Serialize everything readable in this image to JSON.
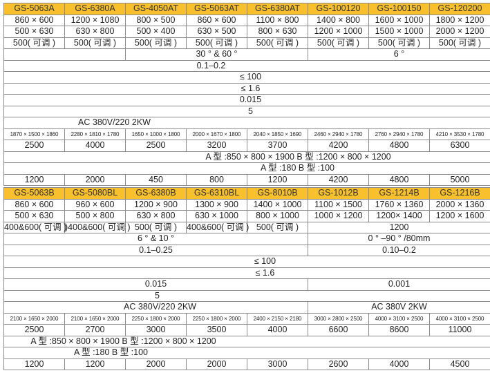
{
  "colors": {
    "header_bg": "#f8c02c",
    "border": "#8a8a8a"
  },
  "table_a": {
    "rows": [
      [
        "GS-5063A",
        "GS-6380A",
        "GS-4050AT",
        "GS-5063AT",
        "GS-6380AT",
        "GS-100120",
        "GS-100150",
        "GS-120200"
      ],
      [
        "860 × 600",
        "1200 × 1080",
        "800 × 500",
        "860 × 600",
        "1100 × 800",
        "1400 × 800",
        "1600 × 1000",
        "1800 × 1200"
      ],
      [
        "500 × 630",
        "630 × 800",
        "500 × 400",
        "630 × 500",
        "800 × 630",
        "1200 × 1000",
        "1500 × 1000",
        "2000 × 1200"
      ],
      [
        "500( 可调 )",
        "500( 可调 )",
        "500( 可调 )",
        "500( 可调 )",
        "500( 可调 )",
        "500( 可调 )",
        "500( 可调 )",
        "500( 可调 )"
      ],
      [
        "",
        "30 °  & 60 °",
        "6 °"
      ],
      [
        "0.1–0.2"
      ],
      [
        "≤ 100"
      ],
      [
        "≤ 1.6"
      ],
      [
        "0.015"
      ],
      [
        "5"
      ],
      [
        "AC 380V/220 2KW"
      ],
      [
        "1870 × 1500 × 1860",
        "2280 × 1810 × 1780",
        "1650 × 1000 × 1800",
        "2000 × 1670 × 1800",
        "2040 × 1850 × 1690",
        "2460 × 2940 × 1780",
        "2760 × 2940 × 1780",
        "4210 × 3530 × 1780"
      ],
      [
        "2500",
        "4000",
        "2500",
        "3200",
        "3700",
        "4200",
        "4800",
        "6300"
      ],
      [
        "A 型 :850 × 800 × 1900   B 型 :1200 × 800 × 1200"
      ],
      [
        "A 型 :180   B 型 :100"
      ],
      [
        "1200",
        "2000",
        "450",
        "800",
        "1200",
        "4200",
        "4800",
        "5000"
      ]
    ]
  },
  "table_b": {
    "rows": [
      [
        "GS-5063B",
        "GS-5080BL",
        "GS-6380B",
        "GS-6310BL",
        "GS-8010B",
        "GS-1012B",
        "GS-1214B",
        "GS-1216B"
      ],
      [
        "860 × 600",
        "960 × 600",
        "1200 × 900",
        "1300 × 900",
        "1400 × 1000",
        "1100 × 1500",
        "1760 × 1360",
        "2000 × 1360"
      ],
      [
        "500 × 630",
        "500 × 800",
        "630 × 800",
        "630 × 1000",
        "800 × 1000",
        "1000 × 1200",
        "1200× 1400",
        "1200 × 1600"
      ],
      [
        "400&600( 可调 )",
        ")400&600( 可调 )",
        "500( 可调 )",
        "400&600( 可调 )",
        "500( 可调 )",
        "1200"
      ],
      [
        "6 °  & 10 °",
        "0 °  –90 °  /80mm"
      ],
      [
        "0.1–0.25",
        "0.10–0.2"
      ],
      [
        "≤ 100"
      ],
      [
        "≤ 1.6"
      ],
      [
        "0.015",
        "0.001"
      ],
      [
        "5"
      ],
      [
        "AC 380V/220 2KW",
        "AC 380V 2KW"
      ],
      [
        "2100 × 1650 × 2000",
        "2100 × 1650 × 2000",
        "2250 × 1800 × 2000",
        "2250 × 1800 × 2000",
        "2400 × 2150 × 2180",
        "3000 × 2800 × 2500",
        "4000 × 3100 × 2500",
        "4000 × 3100 × 2500"
      ],
      [
        "2500",
        "2700",
        "3000",
        "3500",
        "4000",
        "6600",
        "8600",
        "11000"
      ],
      [
        "A 型 :850 × 800 × 1900   B 型 :1200 × 800 × 1200"
      ],
      [
        "A 型 :180   B 型 :100"
      ],
      [
        "1200",
        "1200",
        "2000",
        "2000",
        "3000",
        "2600",
        "4000",
        "4500"
      ]
    ]
  }
}
